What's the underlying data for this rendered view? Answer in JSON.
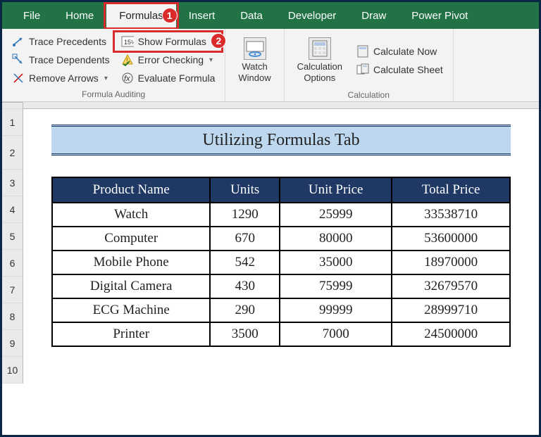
{
  "tabs": {
    "file": "File",
    "home": "Home",
    "formulas": "Formulas",
    "insert": "Insert",
    "data": "Data",
    "developer": "Developer",
    "draw": "Draw",
    "powerpivot": "Power Pivot"
  },
  "ribbon": {
    "tracePrecedents": "Trace Precedents",
    "traceDependents": "Trace Dependents",
    "removeArrows": "Remove Arrows",
    "showFormulas": "Show Formulas",
    "errorChecking": "Error Checking",
    "evaluateFormula": "Evaluate Formula",
    "watchWindow": "Watch\nWindow",
    "calcOptions": "Calculation\nOptions",
    "calcNow": "Calculate Now",
    "calcSheet": "Calculate Sheet",
    "groupAuditing": "Formula Auditing",
    "groupCalculation": "Calculation"
  },
  "callouts": {
    "one": "1",
    "two": "2"
  },
  "rows": [
    "1",
    "2",
    "3",
    "4",
    "5",
    "6",
    "7",
    "8",
    "9",
    "10"
  ],
  "title": "Utilizing Formulas Tab",
  "table": {
    "headers": {
      "product": "Product Name",
      "units": "Units",
      "unitPrice": "Unit Price",
      "totalPrice": "Total Price"
    },
    "data": [
      {
        "product": "Watch",
        "units": "1290",
        "unitPrice": "25999",
        "total": "33538710"
      },
      {
        "product": "Computer",
        "units": "670",
        "unitPrice": "80000",
        "total": "53600000"
      },
      {
        "product": "Mobile Phone",
        "units": "542",
        "unitPrice": "35000",
        "total": "18970000"
      },
      {
        "product": "Digital Camera",
        "units": "430",
        "unitPrice": "75999",
        "total": "32679570"
      },
      {
        "product": "ECG Machine",
        "units": "290",
        "unitPrice": "99999",
        "total": "28999710"
      },
      {
        "product": "Printer",
        "units": "3500",
        "unitPrice": "7000",
        "total": "24500000"
      }
    ]
  },
  "colors": {
    "tabbar": "#217346",
    "titleBg": "#bdd7ee",
    "headerBg": "#1f3864",
    "callout": "#d92b2b"
  }
}
